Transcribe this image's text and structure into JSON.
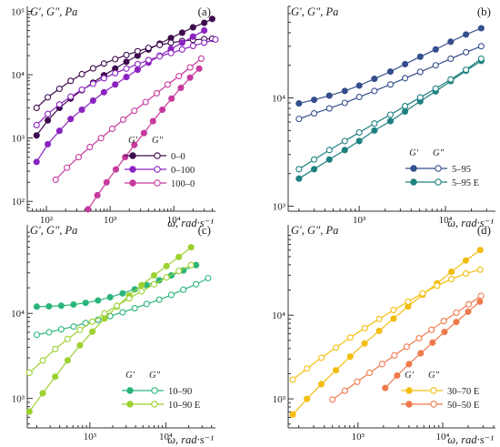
{
  "chart_data": [
    {
      "panel": "(a)",
      "type": "line",
      "scale": "log-log",
      "ylabel": "G', G\", Pa",
      "xlabel": "ω, rad·s⁻¹",
      "xlim": [
        50,
        45000
      ],
      "ylim": [
        70,
        120000
      ],
      "x_ticks": [
        {
          "v": 100,
          "t": "10²"
        },
        {
          "v": 1000,
          "t": "10³"
        },
        {
          "v": 10000,
          "t": "10⁴"
        }
      ],
      "y_ticks": [
        {
          "v": 100,
          "t": "10²"
        },
        {
          "v": 1000,
          "t": "10³"
        },
        {
          "v": 10000,
          "t": "10⁴"
        },
        {
          "v": 100000,
          "t": "10⁵"
        }
      ],
      "legend_header": [
        "G'",
        "G\""
      ],
      "legend_position": "bottom-right",
      "series": [
        {
          "name": "0–0",
          "color": "#3d0a4e",
          "marker": "filled",
          "x": [
            70,
            105,
            160,
            240,
            360,
            540,
            800,
            1200,
            1800,
            2700,
            4000,
            6000,
            9000,
            13500,
            20000,
            30000,
            40000
          ],
          "y": [
            1100,
            1900,
            3000,
            4200,
            5700,
            7500,
            9800,
            12500,
            16000,
            20000,
            25000,
            31000,
            38000,
            46000,
            56000,
            66000,
            76000
          ]
        },
        {
          "name": "0–0",
          "color": "#3d0a4e",
          "marker": "open",
          "x": [
            70,
            105,
            160,
            240,
            360,
            540,
            800,
            1200,
            1800,
            2700,
            4000,
            6000,
            9000,
            13500,
            20000,
            30000,
            40000
          ],
          "y": [
            3000,
            4400,
            6000,
            8000,
            10200,
            12600,
            15000,
            17600,
            20500,
            23500,
            26500,
            29500,
            32000,
            34000,
            35500,
            36500,
            37000
          ]
        },
        {
          "name": "0–100",
          "color": "#8b23c0",
          "marker": "filled",
          "x": [
            70,
            105,
            160,
            240,
            360,
            540,
            800,
            1200,
            1800,
            2700,
            4000,
            6000,
            9000,
            13500,
            20000,
            30000
          ],
          "y": [
            420,
            800,
            1300,
            2000,
            2800,
            3900,
            5300,
            7000,
            9200,
            12000,
            15500,
            20000,
            25500,
            32000,
            40000,
            50000
          ]
        },
        {
          "name": "0–100",
          "color": "#8b23c0",
          "marker": "open",
          "x": [
            70,
            105,
            160,
            240,
            360,
            540,
            800,
            1200,
            1800,
            2700,
            4000,
            6000,
            9000,
            13500,
            20000,
            30000,
            45000
          ],
          "y": [
            1600,
            2400,
            3400,
            4500,
            5800,
            7200,
            8800,
            10600,
            12500,
            14700,
            17000,
            19500,
            22000,
            25000,
            28500,
            32000,
            36000
          ]
        },
        {
          "name": "100–0",
          "color": "#c63a9e",
          "marker": "filled",
          "x": [
            450,
            630,
            880,
            1230,
            1720,
            2400,
            3400,
            4700,
            6600,
            9200,
            12900,
            18000,
            25000
          ],
          "y": [
            75,
            125,
            200,
            320,
            500,
            780,
            1200,
            1850,
            2800,
            4200,
            6200,
            9000,
            12500
          ]
        },
        {
          "name": "100–0",
          "color": "#c63a9e",
          "marker": "open",
          "x": [
            140,
            210,
            320,
            480,
            720,
            1080,
            1600,
            2400,
            3600,
            5400,
            8000,
            12000,
            18000,
            27000
          ],
          "y": [
            220,
            340,
            500,
            720,
            1000,
            1400,
            1950,
            2700,
            3700,
            5100,
            7000,
            9500,
            13000,
            18000
          ]
        }
      ]
    },
    {
      "panel": "(b)",
      "type": "line",
      "scale": "log-log",
      "ylabel": "G', G\", Pa",
      "xlabel": "ω, rad·s⁻¹",
      "xlim": [
        150,
        38000
      ],
      "ylim": [
        900,
        70000
      ],
      "x_ticks": [
        {
          "v": 1000,
          "t": "10³"
        },
        {
          "v": 10000,
          "t": "10⁴"
        }
      ],
      "y_ticks": [
        {
          "v": 1000,
          "t": "10³"
        },
        {
          "v": 10000,
          "t": "10⁴"
        }
      ],
      "legend_header": [
        "G'",
        "G\""
      ],
      "legend_position": "bottom-right",
      "series": [
        {
          "name": "5–95",
          "color": "#354e8c",
          "marker": "filled",
          "x": [
            200,
            300,
            450,
            680,
            1000,
            1500,
            2300,
            3400,
            5100,
            7700,
            11500,
            17300,
            26000
          ],
          "y": [
            8900,
            9600,
            10500,
            11600,
            13000,
            15000,
            17500,
            20500,
            24000,
            28000,
            33000,
            38500,
            44000
          ]
        },
        {
          "name": "5–95",
          "color": "#354e8c",
          "marker": "open",
          "x": [
            200,
            300,
            450,
            680,
            1000,
            1500,
            2300,
            3400,
            5100,
            7700,
            11500,
            17300,
            26000
          ],
          "y": [
            6400,
            7200,
            8000,
            9000,
            10200,
            11600,
            13300,
            15200,
            17400,
            20000,
            23000,
            26400,
            30000
          ]
        },
        {
          "name": "5–95 E",
          "color": "#1e8080",
          "marker": "filled",
          "x": [
            200,
            300,
            450,
            680,
            1000,
            1500,
            2300,
            3400,
            5100,
            7700,
            11500,
            17300,
            26000
          ],
          "y": [
            1800,
            2200,
            2700,
            3300,
            4000,
            5000,
            6100,
            7500,
            9300,
            11500,
            14300,
            17800,
            22000
          ]
        },
        {
          "name": "5–95 E",
          "color": "#1e8080",
          "marker": "open",
          "x": [
            200,
            300,
            450,
            680,
            1000,
            1500,
            2300,
            3400,
            5100,
            7700,
            11500,
            17300,
            26000
          ],
          "y": [
            2200,
            2700,
            3300,
            4000,
            4800,
            5800,
            7000,
            8400,
            10100,
            12200,
            14800,
            18200,
            23000
          ]
        }
      ]
    },
    {
      "panel": "(c)",
      "type": "line",
      "scale": "log-log",
      "ylabel": "G', G\", Pa",
      "xlabel": "ω, rad·s⁻¹",
      "xlim": [
        150,
        45000
      ],
      "ylim": [
        450,
        110000
      ],
      "x_ticks": [
        {
          "v": 1000,
          "t": "10³"
        },
        {
          "v": 10000,
          "t": "10⁴"
        }
      ],
      "y_ticks": [
        {
          "v": 1000,
          "t": "10³"
        },
        {
          "v": 10000,
          "t": "10⁴"
        }
      ],
      "legend_header": [
        "G'",
        "G\""
      ],
      "legend_position": "bottom-right",
      "series": [
        {
          "name": "10–90",
          "color": "#2bb57a",
          "marker": "filled",
          "x": [
            200,
            290,
            420,
            610,
            880,
            1280,
            1850,
            2700,
            3900,
            5600,
            8200,
            11800,
            17000,
            25000
          ],
          "y": [
            12000,
            12100,
            12300,
            12700,
            13300,
            14200,
            15500,
            17200,
            19200,
            21500,
            24500,
            28000,
            32000,
            37000
          ]
        },
        {
          "name": "10–90",
          "color": "#2bb57a",
          "marker": "open",
          "x": [
            200,
            290,
            420,
            610,
            880,
            1280,
            1850,
            2700,
            3900,
            5600,
            8200,
            11800,
            17000,
            25000,
            36000
          ],
          "y": [
            5600,
            6000,
            6500,
            7000,
            7700,
            8400,
            9300,
            10300,
            11500,
            12900,
            14500,
            16500,
            19000,
            22000,
            26000
          ]
        },
        {
          "name": "10–90 E",
          "color": "#9cd12f",
          "marker": "filled",
          "x": [
            160,
            240,
            350,
            510,
            740,
            1080,
            1560,
            2270,
            3300,
            4800,
            7000,
            10200,
            14800,
            21500
          ],
          "y": [
            700,
            1150,
            1800,
            2800,
            4200,
            6100,
            8700,
            12000,
            16200,
            21500,
            28000,
            36000,
            46000,
            60000
          ]
        },
        {
          "name": "10–90 E",
          "color": "#9cd12f",
          "marker": "open",
          "x": [
            160,
            240,
            350,
            510,
            740,
            1080,
            1560,
            2270,
            3300,
            4800,
            7000,
            10200,
            14800,
            21500
          ],
          "y": [
            2000,
            2800,
            3800,
            5000,
            6400,
            8000,
            10000,
            12300,
            15000,
            18200,
            22000,
            26500,
            31500,
            37000
          ]
        }
      ]
    },
    {
      "panel": "(d)",
      "type": "line",
      "scale": "log-log",
      "ylabel": "G', G\", Pa",
      "xlabel": "ω, rad·s⁻¹",
      "xlim": [
        150,
        42000
      ],
      "ylim": [
        450,
        120000
      ],
      "x_ticks": [
        {
          "v": 1000,
          "t": "10³"
        },
        {
          "v": 10000,
          "t": "10⁴"
        }
      ],
      "y_ticks": [
        {
          "v": 1000,
          "t": "10³"
        },
        {
          "v": 10000,
          "t": "10⁴"
        }
      ],
      "legend_header": [
        "G'",
        "G\""
      ],
      "legend_position": "bottom-right",
      "series": [
        {
          "name": "30–70 E",
          "color": "#f3bd10",
          "marker": "filled",
          "x": [
            170,
            250,
            370,
            550,
            810,
            1200,
            1780,
            2630,
            3900,
            5800,
            8600,
            12700,
            18800,
            27800
          ],
          "y": [
            650,
            1000,
            1500,
            2200,
            3200,
            4600,
            6500,
            9100,
            12700,
            17500,
            24000,
            33000,
            45000,
            60000
          ]
        },
        {
          "name": "30–70 E",
          "color": "#f3bd10",
          "marker": "open",
          "x": [
            170,
            250,
            370,
            550,
            810,
            1200,
            1780,
            2630,
            3900,
            5800,
            8600,
            12700,
            18800,
            27800
          ],
          "y": [
            1700,
            2300,
            3100,
            4100,
            5400,
            7000,
            9000,
            11500,
            14500,
            18200,
            22500,
            27000,
            31500,
            35000
          ]
        },
        {
          "name": "50–50 E",
          "color": "#ef7a4d",
          "marker": "filled",
          "x": [
            2100,
            2900,
            4000,
            5500,
            7600,
            10500,
            14500,
            20000,
            27500
          ],
          "y": [
            1350,
            1900,
            2600,
            3500,
            4700,
            6300,
            8300,
            11000,
            14500
          ]
        },
        {
          "name": "50–50 E",
          "color": "#ef7a4d",
          "marker": "open",
          "x": [
            500,
            700,
            980,
            1370,
            1920,
            2690,
            3760,
            5270,
            7380,
            10300,
            14500,
            20300,
            28400
          ],
          "y": [
            980,
            1250,
            1600,
            2050,
            2600,
            3300,
            4200,
            5300,
            6700,
            8500,
            10700,
            13500,
            17000
          ]
        }
      ]
    }
  ]
}
